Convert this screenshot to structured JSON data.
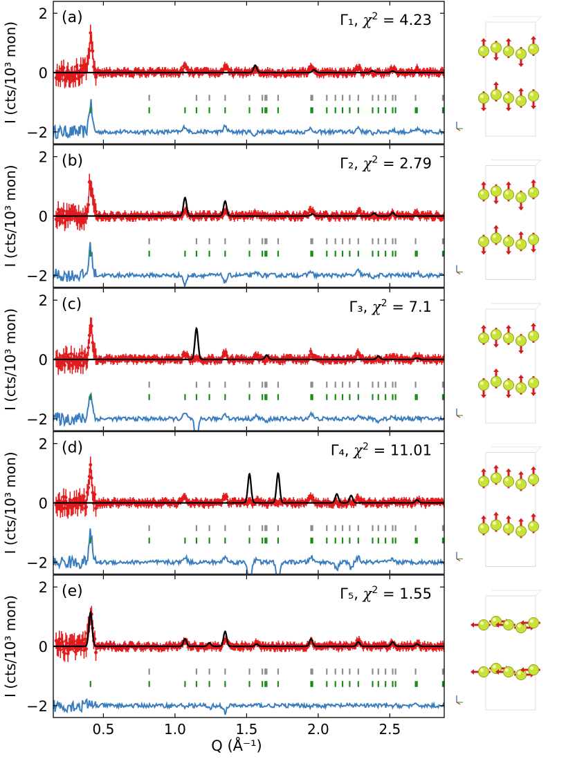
{
  "chart_data": {
    "type": "line",
    "xlabel": "Q (Å⁻¹)",
    "ylabel": "I (cts/10³ mon)",
    "xlim": [
      0.15,
      2.88
    ],
    "ylim": [
      -2.4,
      2.4
    ],
    "xticks": [
      0.5,
      1.0,
      1.5,
      2.0,
      2.5
    ],
    "xtick_labels": [
      "0.5",
      "1.0",
      "1.5",
      "2.0",
      "2.5"
    ],
    "yticks": [
      -2,
      0,
      2
    ],
    "ytick_labels": [
      "−2",
      "0",
      "2"
    ],
    "nuclear_reflections_gray": [
      0.82,
      1.15,
      1.24,
      1.35,
      1.52,
      1.61,
      1.63,
      1.64,
      1.72,
      1.95,
      1.96,
      2.06,
      2.12,
      2.17,
      2.22,
      2.28,
      2.38,
      2.42,
      2.47,
      2.52,
      2.54,
      2.68,
      2.87,
      2.88
    ],
    "magnetic_reflections_green": [
      0.41,
      0.82,
      1.07,
      1.15,
      1.24,
      1.35,
      1.52,
      1.61,
      1.63,
      1.64,
      1.72,
      1.95,
      1.96,
      2.06,
      2.12,
      2.17,
      2.22,
      2.28,
      2.38,
      2.42,
      2.47,
      2.52,
      2.54,
      2.68,
      2.69,
      2.87,
      2.88
    ],
    "common_data_peaks": [
      [
        0.41,
        1.1
      ],
      [
        1.07,
        0.22
      ],
      [
        1.35,
        0.22
      ],
      [
        1.57,
        0.1
      ],
      [
        1.95,
        0.22
      ],
      [
        2.28,
        0.18
      ],
      [
        2.52,
        0.12
      ],
      [
        2.69,
        0.1
      ]
    ],
    "panels": [
      {
        "label": "(a)",
        "irrep": "Γ₁",
        "chi2": "4.23",
        "calc_peaks": [
          [
            1.56,
            0.25
          ],
          [
            1.97,
            0.1
          ],
          [
            2.38,
            0.06
          ],
          [
            2.52,
            0.05
          ]
        ],
        "diff_offset": -2.0,
        "spins": "axial-alternating"
      },
      {
        "label": "(b)",
        "irrep": "Γ₂",
        "chi2": "2.79",
        "calc_peaks": [
          [
            1.07,
            0.62
          ],
          [
            1.35,
            0.5
          ],
          [
            1.96,
            0.07
          ],
          [
            2.39,
            0.1
          ],
          [
            2.52,
            0.12
          ]
        ],
        "diff_offset": -2.0,
        "spins": "axial-alternating"
      },
      {
        "label": "(c)",
        "irrep": "Γ₃",
        "chi2": "7.1",
        "calc_peaks": [
          [
            1.15,
            1.05
          ],
          [
            1.64,
            0.15
          ],
          [
            2.42,
            0.12
          ],
          [
            2.69,
            0.05
          ]
        ],
        "diff_offset": -2.0,
        "spins": "axial-alternating"
      },
      {
        "label": "(d)",
        "irrep": "Γ₄",
        "chi2": "11.01",
        "calc_peaks": [
          [
            1.52,
            0.98
          ],
          [
            1.72,
            1.0
          ],
          [
            2.13,
            0.3
          ],
          [
            2.23,
            0.25
          ],
          [
            2.69,
            0.1
          ]
        ],
        "diff_offset": -2.0,
        "spins": "axial-parallel"
      },
      {
        "label": "(e)",
        "irrep": "Γ₅",
        "chi2": "1.55",
        "calc_peaks": [
          [
            0.41,
            1.15
          ],
          [
            1.07,
            0.25
          ],
          [
            1.24,
            0.12
          ],
          [
            1.35,
            0.5
          ],
          [
            1.57,
            0.08
          ],
          [
            1.95,
            0.25
          ],
          [
            2.28,
            0.15
          ],
          [
            2.52,
            0.15
          ],
          [
            2.69,
            0.08
          ]
        ],
        "diff_offset": -2.0,
        "spins": "in-plane"
      }
    ],
    "series": [
      {
        "name": "observed",
        "color": "#e31a1c"
      },
      {
        "name": "calculated",
        "color": "#000000"
      },
      {
        "name": "difference",
        "color": "#3a7dbf"
      },
      {
        "name": "nuclear ticks",
        "color": "#8c8c8c"
      },
      {
        "name": "magnetic ticks",
        "color": "#1a8a1a"
      }
    ]
  },
  "colors": {
    "observed": "#e31a1c",
    "calculated": "#000000",
    "difference": "#3a7dbf",
    "nuclear_tick": "#8c8c8c",
    "magnetic_tick": "#1a8a1a",
    "atom": "#c9e23a",
    "spin": "#d21e1e"
  }
}
